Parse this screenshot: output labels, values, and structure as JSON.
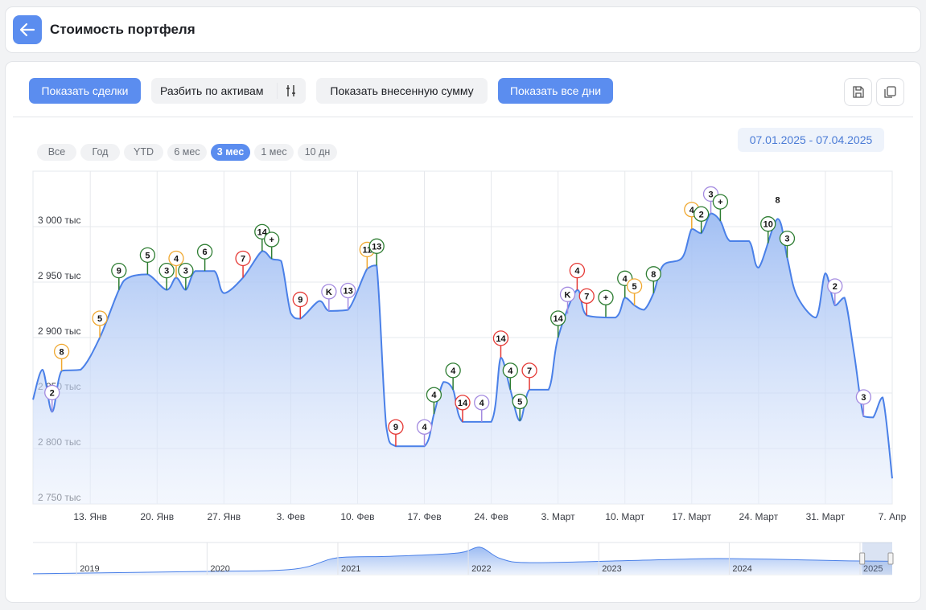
{
  "header": {
    "title": "Стоимость портфеля"
  },
  "toolbar": {
    "buttons": [
      {
        "label": "Показать сделки",
        "active": true
      },
      {
        "label": "Разбить по активам",
        "active": false
      },
      {
        "label": "Показать внесенную сумму",
        "active": false
      },
      {
        "label": "Показать все дни",
        "active": true
      }
    ]
  },
  "periods": [
    {
      "label": "Все",
      "active": false
    },
    {
      "label": "Год",
      "active": false
    },
    {
      "label": "YTD",
      "active": false
    },
    {
      "label": "6 мес",
      "active": false
    },
    {
      "label": "3 мес",
      "active": true
    },
    {
      "label": "1 мес",
      "active": false
    },
    {
      "label": "10 дн",
      "active": false
    }
  ],
  "date_range": "07.01.2025 - 07.04.2025",
  "chart_data": {
    "type": "area",
    "color": "#4a80e8",
    "grid": true,
    "xlim": [
      "2025-01-07",
      "2025-04-07"
    ],
    "xticks": [
      {
        "value": "2025-01-13",
        "label": "13. Янв"
      },
      {
        "value": "2025-01-20",
        "label": "20. Янв"
      },
      {
        "value": "2025-01-27",
        "label": "27. Янв"
      },
      {
        "value": "2025-02-03",
        "label": "3. Фев"
      },
      {
        "value": "2025-02-10",
        "label": "10. Фев"
      },
      {
        "value": "2025-02-17",
        "label": "17. Фев"
      },
      {
        "value": "2025-02-24",
        "label": "24. Фев"
      },
      {
        "value": "2025-03-03",
        "label": "3. Март"
      },
      {
        "value": "2025-03-10",
        "label": "10. Март"
      },
      {
        "value": "2025-03-17",
        "label": "17. Март"
      },
      {
        "value": "2025-03-24",
        "label": "24. Март"
      },
      {
        "value": "2025-03-31",
        "label": "31. Март"
      },
      {
        "value": "2025-04-07",
        "label": "7. Апр"
      }
    ],
    "ylim": [
      2750000,
      3050000
    ],
    "yticks": [
      {
        "value": 2750000,
        "label": "2 750 тыс"
      },
      {
        "value": 2800000,
        "label": "2 800 тыс"
      },
      {
        "value": 2850000,
        "label": "2 850 тыс"
      },
      {
        "value": 2900000,
        "label": "2 900 тыс"
      },
      {
        "value": 2950000,
        "label": "2 950 тыс"
      },
      {
        "value": 3000000,
        "label": "3 000 тыс"
      }
    ],
    "x": [
      "2025-01-07",
      "2025-01-08",
      "2025-01-09",
      "2025-01-10",
      "2025-01-12",
      "2025-01-14",
      "2025-01-16",
      "2025-01-17",
      "2025-01-19",
      "2025-01-21",
      "2025-01-22",
      "2025-01-23",
      "2025-01-24",
      "2025-01-26",
      "2025-01-27",
      "2025-01-29",
      "2025-01-31",
      "2025-02-01",
      "2025-02-02",
      "2025-02-03",
      "2025-02-04",
      "2025-02-06",
      "2025-02-07",
      "2025-02-09",
      "2025-02-11",
      "2025-02-12",
      "2025-02-13",
      "2025-02-14",
      "2025-02-17",
      "2025-02-18",
      "2025-02-19",
      "2025-02-20",
      "2025-02-21",
      "2025-02-24",
      "2025-02-25",
      "2025-02-26",
      "2025-02-27",
      "2025-02-28",
      "2025-03-02",
      "2025-03-03",
      "2025-03-05",
      "2025-03-06",
      "2025-03-09",
      "2025-03-10",
      "2025-03-11",
      "2025-03-12",
      "2025-03-13",
      "2025-03-14",
      "2025-03-16",
      "2025-03-17",
      "2025-03-18",
      "2025-03-19",
      "2025-03-20",
      "2025-03-21",
      "2025-03-23",
      "2025-03-24",
      "2025-03-26",
      "2025-03-27",
      "2025-03-28",
      "2025-03-30",
      "2025-03-31",
      "2025-04-01",
      "2025-04-02",
      "2025-04-03",
      "2025-04-04",
      "2025-04-05",
      "2025-04-06",
      "2025-04-07"
    ],
    "values": [
      2844000,
      2871000,
      2833000,
      2870000,
      2871000,
      2900000,
      2943000,
      2954000,
      2957000,
      2943000,
      2954000,
      2943000,
      2960000,
      2960000,
      2940000,
      2954000,
      2978000,
      2971000,
      2969000,
      2922000,
      2917000,
      2933000,
      2924000,
      2925000,
      2962000,
      2965000,
      2820000,
      2802000,
      2802000,
      2831000,
      2860000,
      2853000,
      2824000,
      2824000,
      2882000,
      2853000,
      2825000,
      2853000,
      2853000,
      2900000,
      2943000,
      2920000,
      2918000,
      2936000,
      2929000,
      2925000,
      2940000,
      2965000,
      2972000,
      2998000,
      2994000,
      3012000,
      3005000,
      2987000,
      2987000,
      2963000,
      3007000,
      2972000,
      2938000,
      2918000,
      2958000,
      2929000,
      2936000,
      2886000,
      2829000,
      2828000,
      2846000,
      2773000
    ],
    "markers": [
      {
        "x": "2025-01-09",
        "label": "2",
        "color": "#a48be0"
      },
      {
        "x": "2025-01-10",
        "label": "8",
        "color": "#f0a830"
      },
      {
        "x": "2025-01-14",
        "label": "5",
        "color": "#f0a830"
      },
      {
        "x": "2025-01-16",
        "label": "9",
        "color": "#2e7d32"
      },
      {
        "x": "2025-01-19",
        "label": "5",
        "color": "#2e7d32"
      },
      {
        "x": "2025-01-21",
        "label": "3",
        "color": "#2e7d32"
      },
      {
        "x": "2025-01-22",
        "label": "4",
        "color": "#f0a830"
      },
      {
        "x": "2025-01-23",
        "label": "3",
        "color": "#2e7d32"
      },
      {
        "x": "2025-01-25",
        "label": "6",
        "color": "#2e7d32"
      },
      {
        "x": "2025-01-29",
        "label": "7",
        "color": "#e53935"
      },
      {
        "x": "2025-01-31",
        "label": "14",
        "color": "#2e7d32"
      },
      {
        "x": "2025-02-01",
        "label": "+",
        "color": "#2e7d32"
      },
      {
        "x": "2025-02-04",
        "label": "9",
        "color": "#e53935"
      },
      {
        "x": "2025-02-07",
        "label": "K",
        "color": "#a48be0"
      },
      {
        "x": "2025-02-09",
        "label": "13",
        "color": "#a48be0"
      },
      {
        "x": "2025-02-11",
        "label": "11",
        "color": "#f0a830"
      },
      {
        "x": "2025-02-12",
        "label": "13",
        "color": "#2e7d32"
      },
      {
        "x": "2025-02-14",
        "label": "9",
        "color": "#e53935"
      },
      {
        "x": "2025-02-17",
        "label": "4",
        "color": "#a48be0"
      },
      {
        "x": "2025-02-18",
        "label": "4",
        "color": "#2e7d32"
      },
      {
        "x": "2025-02-20",
        "label": "4",
        "color": "#2e7d32"
      },
      {
        "x": "2025-02-21",
        "label": "14",
        "color": "#e53935"
      },
      {
        "x": "2025-02-23",
        "label": "4",
        "color": "#a48be0"
      },
      {
        "x": "2025-02-25",
        "label": "14",
        "color": "#e53935"
      },
      {
        "x": "2025-02-26",
        "label": "4",
        "color": "#2e7d32"
      },
      {
        "x": "2025-02-27",
        "label": "5",
        "color": "#2e7d32"
      },
      {
        "x": "2025-02-28",
        "label": "7",
        "color": "#e53935"
      },
      {
        "x": "2025-03-03",
        "label": "14",
        "color": "#2e7d32"
      },
      {
        "x": "2025-03-04",
        "label": "K",
        "color": "#a48be0"
      },
      {
        "x": "2025-03-05",
        "label": "4",
        "color": "#e53935"
      },
      {
        "x": "2025-03-06",
        "label": "7",
        "color": "#e53935"
      },
      {
        "x": "2025-03-08",
        "label": "+",
        "color": "#2e7d32"
      },
      {
        "x": "2025-03-10",
        "label": "4",
        "color": "#2e7d32"
      },
      {
        "x": "2025-03-11",
        "label": "5",
        "color": "#f0a830"
      },
      {
        "x": "2025-03-13",
        "label": "8",
        "color": "#2e7d32"
      },
      {
        "x": "2025-03-17",
        "label": "4",
        "color": "#f0a830"
      },
      {
        "x": "2025-03-18",
        "label": "2",
        "color": "#2e7d32"
      },
      {
        "x": "2025-03-19",
        "label": "3",
        "color": "#a48be0"
      },
      {
        "x": "2025-03-20",
        "label": "+",
        "color": "#2e7d32"
      },
      {
        "x": "2025-03-25",
        "label": "10",
        "color": "#2e7d32"
      },
      {
        "x": "2025-03-26",
        "label": "8",
        "color": "none"
      },
      {
        "x": "2025-03-27",
        "label": "3",
        "color": "#2e7d32"
      },
      {
        "x": "2025-04-01",
        "label": "2",
        "color": "#a48be0"
      },
      {
        "x": "2025-04-04",
        "label": "3",
        "color": "#a48be0"
      }
    ],
    "navigator": {
      "years": [
        2019,
        2020,
        2021,
        2022,
        2023,
        2024,
        2025
      ],
      "xlim": [
        "2018-09",
        "2025-04"
      ],
      "ylim": [
        0,
        7000000
      ],
      "x": [
        "2018-09",
        "2020-01",
        "2020-09",
        "2021-01",
        "2021-06",
        "2021-12",
        "2022-02",
        "2022-04",
        "2022-07",
        "2023-06",
        "2023-12",
        "2024-06",
        "2024-12",
        "2025-04"
      ],
      "values": [
        200000,
        700000,
        1200000,
        3700000,
        4000000,
        4700000,
        6000000,
        3500000,
        2600000,
        3200000,
        3500000,
        3300000,
        3000000,
        2900000
      ]
    }
  }
}
